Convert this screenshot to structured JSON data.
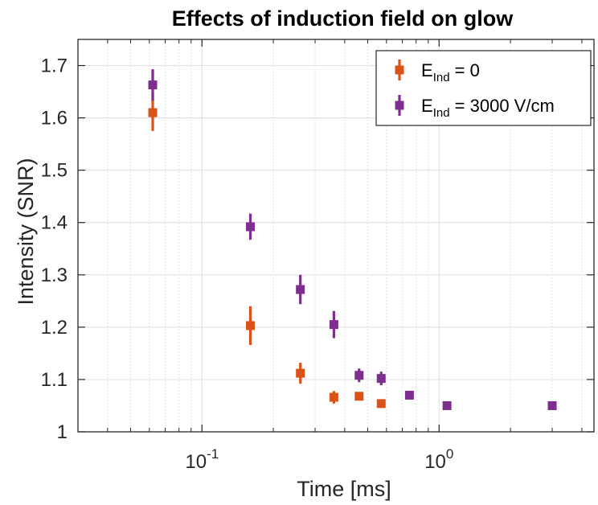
{
  "chart_data": {
    "type": "scatter",
    "title": "Effects of induction field on glow",
    "xlabel": "Time [ms]",
    "ylabel": "Intensity (SNR)",
    "xscale": "log",
    "xlim": [
      0.03,
      4.5
    ],
    "ylim": [
      1.0,
      1.75
    ],
    "grid": true,
    "legend_position": "top-right",
    "x_ticks": [
      {
        "base": "10",
        "exp": "-1",
        "value": 0.1
      },
      {
        "base": "10",
        "exp": "0",
        "value": 1.0
      }
    ],
    "y_ticks": [
      "1",
      "1.1",
      "1.2",
      "1.3",
      "1.4",
      "1.5",
      "1.6",
      "1.7"
    ],
    "series": [
      {
        "legend_main": "E",
        "legend_sub": "Ind",
        "legend_rest": " = 0",
        "color": "#D95319",
        "x": [
          0.062,
          0.16,
          0.26,
          0.36,
          0.46,
          0.57
        ],
        "y": [
          1.61,
          1.203,
          1.112,
          1.066,
          1.068,
          1.054
        ],
        "err": [
          0.035,
          0.037,
          0.02,
          0.012,
          0.007,
          0.006
        ]
      },
      {
        "legend_main": "E",
        "legend_sub": "Ind",
        "legend_rest": " = 3000 V/cm",
        "color": "#7E2F8E",
        "x": [
          0.062,
          0.16,
          0.26,
          0.36,
          0.46,
          0.57,
          0.75,
          1.08,
          3.0
        ],
        "y": [
          1.663,
          1.392,
          1.272,
          1.205,
          1.108,
          1.102,
          1.07,
          1.05,
          1.05
        ],
        "err": [
          0.03,
          0.025,
          0.028,
          0.026,
          0.013,
          0.013,
          0.005,
          0.005,
          0.005
        ]
      }
    ]
  }
}
